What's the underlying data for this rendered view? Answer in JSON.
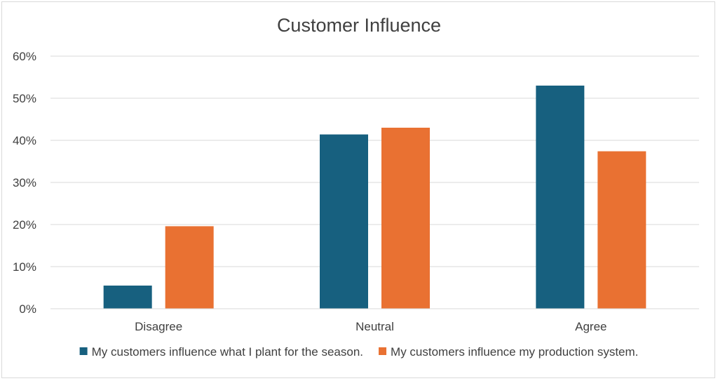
{
  "chart_data": {
    "type": "bar",
    "title": "Customer Influence",
    "xlabel": "",
    "ylabel": "",
    "categories": [
      "Disagree",
      "Neutral",
      "Agree"
    ],
    "series": [
      {
        "name": "My customers influence what I plant for the season.",
        "color": "#17607f",
        "values": [
          5.5,
          41.4,
          53.0
        ]
      },
      {
        "name": "My customers influence my production system.",
        "color": "#e97132",
        "values": [
          19.6,
          43.0,
          37.4
        ]
      }
    ],
    "ylim": [
      0,
      60
    ],
    "yticks": [
      "0%",
      "10%",
      "20%",
      "30%",
      "40%",
      "50%",
      "60%"
    ],
    "grid": true,
    "legend": "bottom"
  }
}
